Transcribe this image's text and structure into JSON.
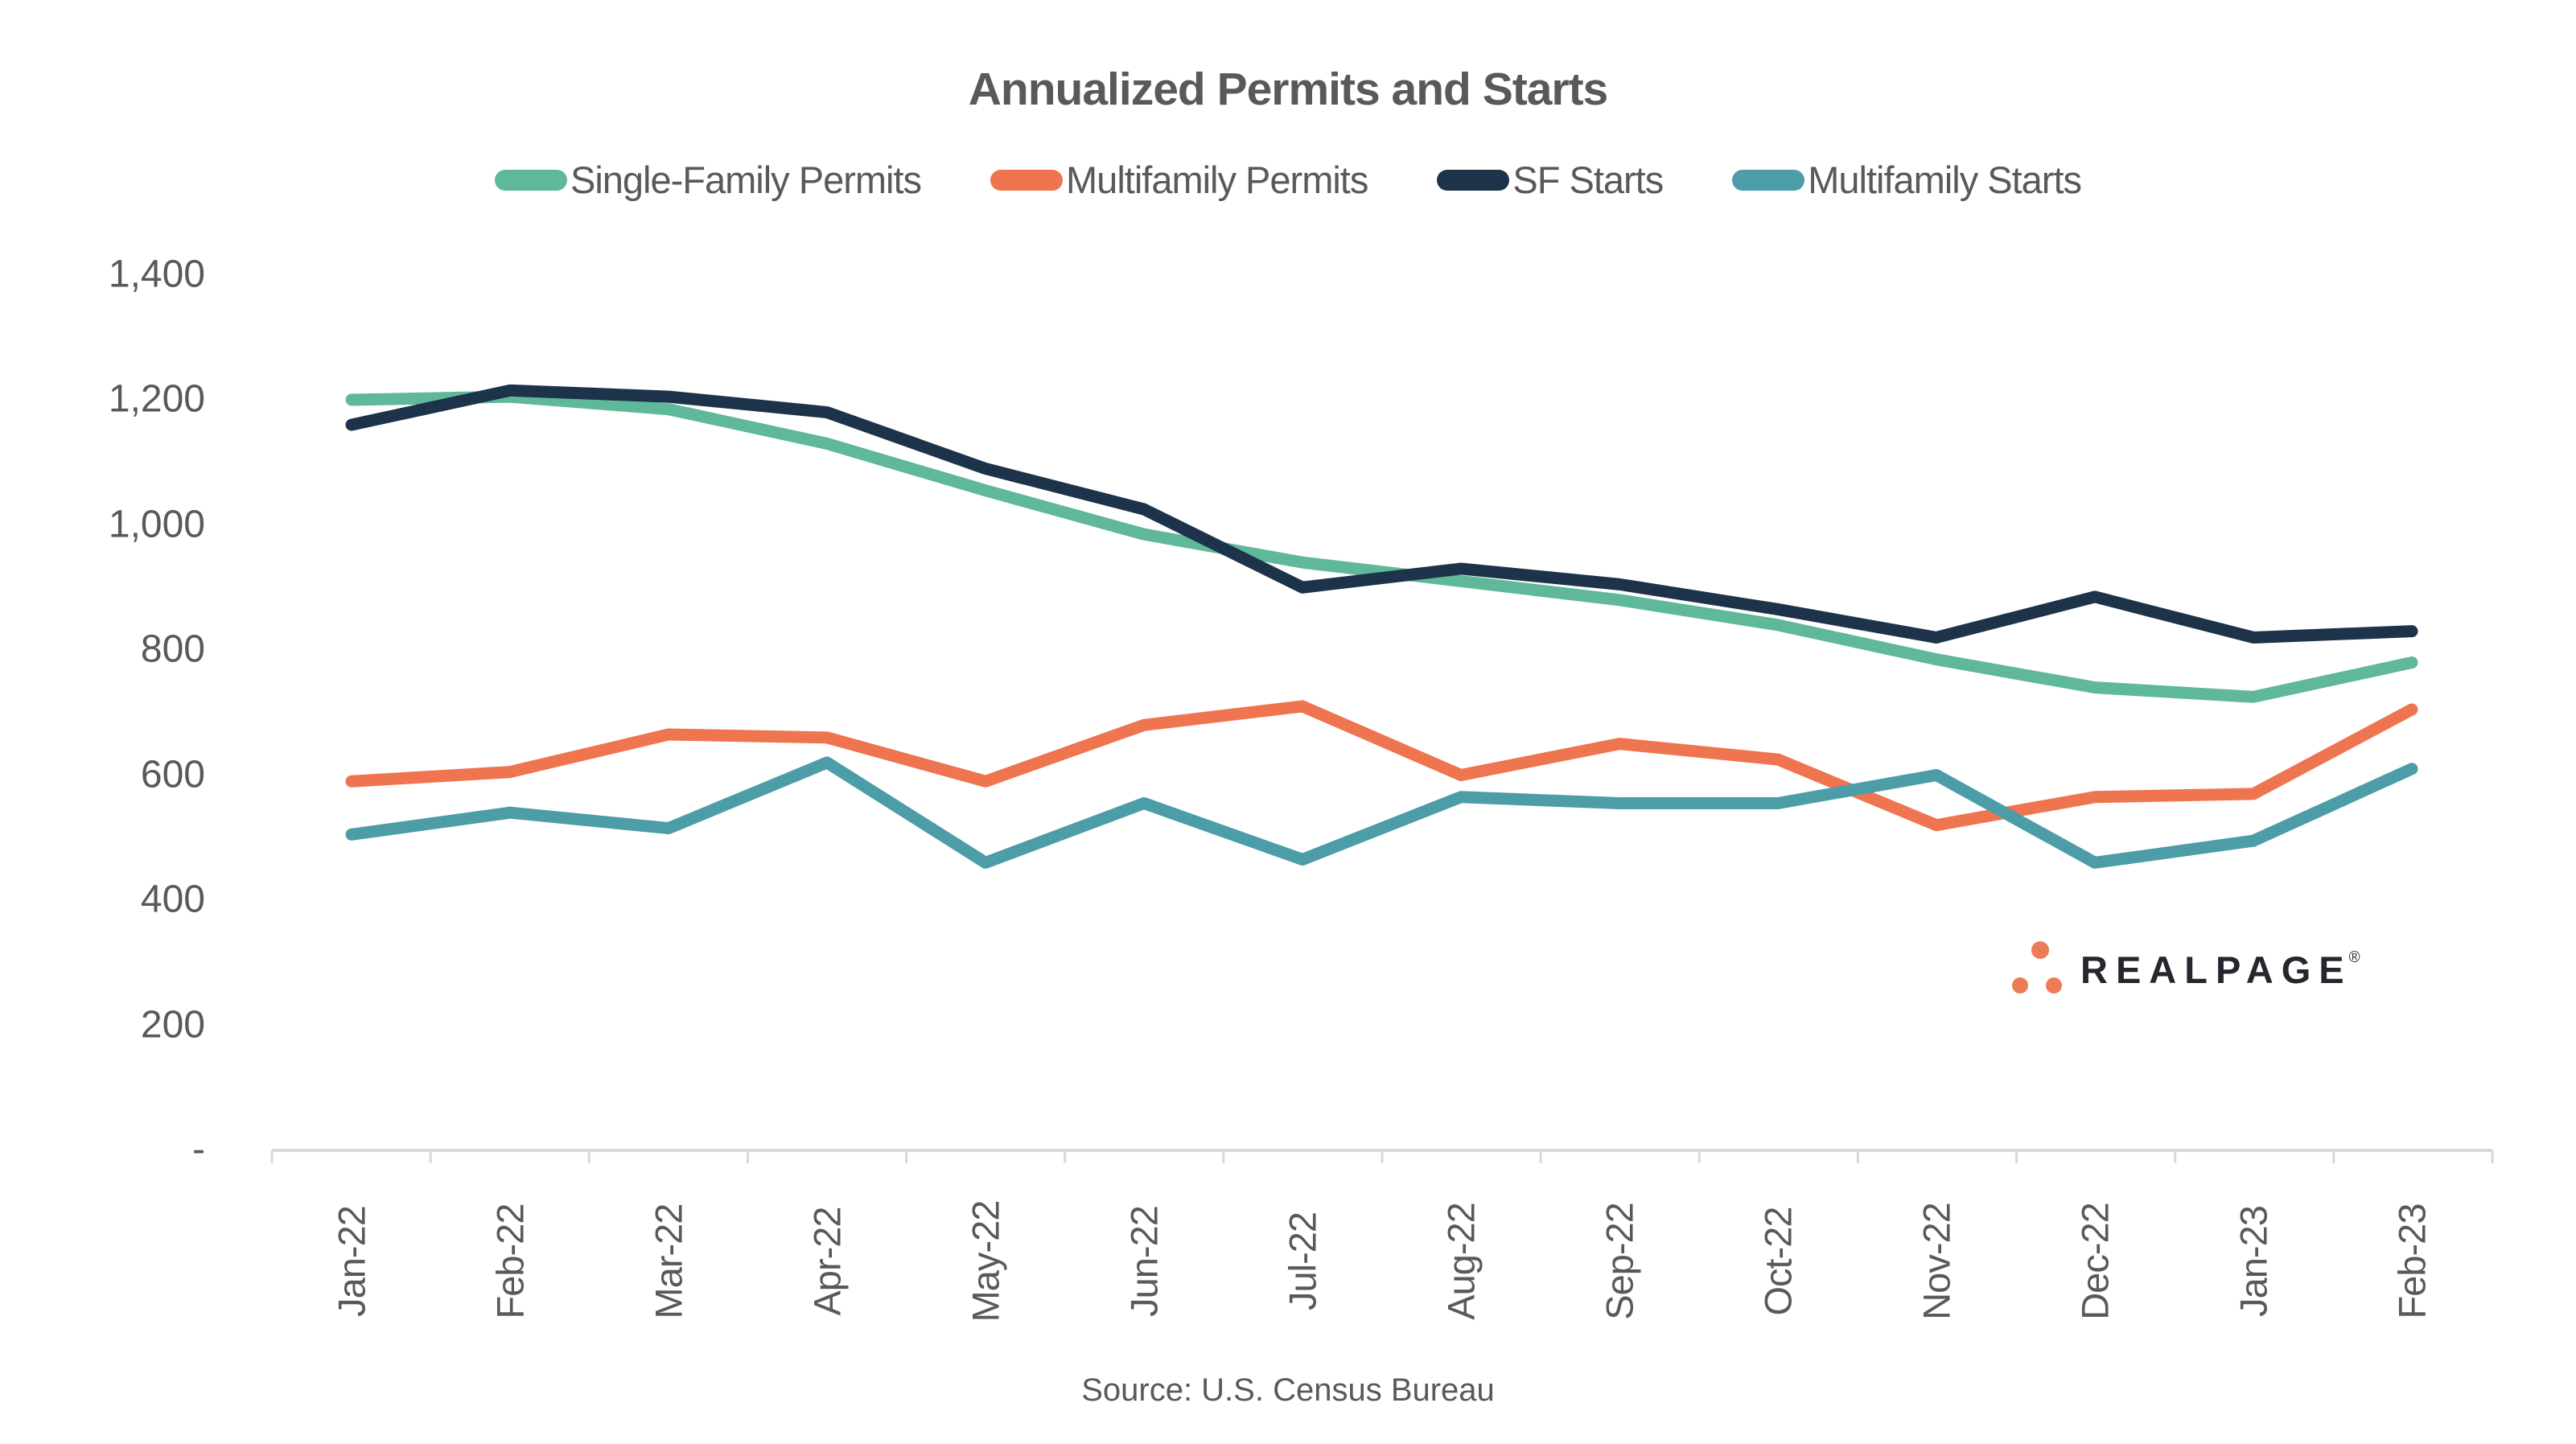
{
  "title": "Annualized Permits and Starts",
  "source": "Source: U.S. Census Bureau",
  "logo": {
    "text": "REALPAGE",
    "reg_mark": "®",
    "dot_color": "#ee7b57",
    "text_color": "#26262e"
  },
  "colors": {
    "text_gray": "#595959",
    "axis_line": "#d9d9d9",
    "background": "#ffffff",
    "single_family_permits": "#5fb89a",
    "multifamily_permits": "#ef7450",
    "sf_starts": "#1d3349",
    "multifamily_starts": "#4c9da8"
  },
  "chart_data": {
    "type": "line",
    "categories": [
      "Jan-22",
      "Feb-22",
      "Mar-22",
      "Apr-22",
      "May-22",
      "Jun-22",
      "Jul-22",
      "Aug-22",
      "Sep-22",
      "Oct-22",
      "Nov-22",
      "Dec-22",
      "Jan-23",
      "Feb-23"
    ],
    "series": [
      {
        "name": "Single-Family Permits",
        "color": "#5fb89a",
        "values": [
          1200,
          1205,
          1185,
          1130,
          1055,
          985,
          940,
          910,
          880,
          840,
          785,
          740,
          725,
          780
        ]
      },
      {
        "name": "Multifamily Permits",
        "color": "#ef7450",
        "values": [
          590,
          605,
          665,
          660,
          590,
          680,
          710,
          600,
          650,
          625,
          520,
          565,
          570,
          705
        ]
      },
      {
        "name": "SF Starts",
        "color": "#1d3349",
        "values": [
          1160,
          1215,
          1205,
          1180,
          1090,
          1025,
          900,
          930,
          905,
          865,
          820,
          885,
          820,
          830
        ]
      },
      {
        "name": "Multifamily Starts",
        "color": "#4c9da8",
        "values": [
          505,
          540,
          515,
          620,
          460,
          555,
          465,
          565,
          555,
          555,
          600,
          460,
          495,
          610
        ]
      }
    ],
    "title": "Annualized Permits and Starts",
    "xlabel": "",
    "ylabel": "",
    "ylim": [
      0,
      1400
    ],
    "ytick_step": 200,
    "ytick_labels_top_to_bottom": [
      "1,400",
      "1,200",
      "1,000",
      "800",
      "600",
      "400",
      "200",
      "-"
    ],
    "grid": false,
    "legend_position": "top",
    "x_tick_label_rotation_deg": 90
  }
}
